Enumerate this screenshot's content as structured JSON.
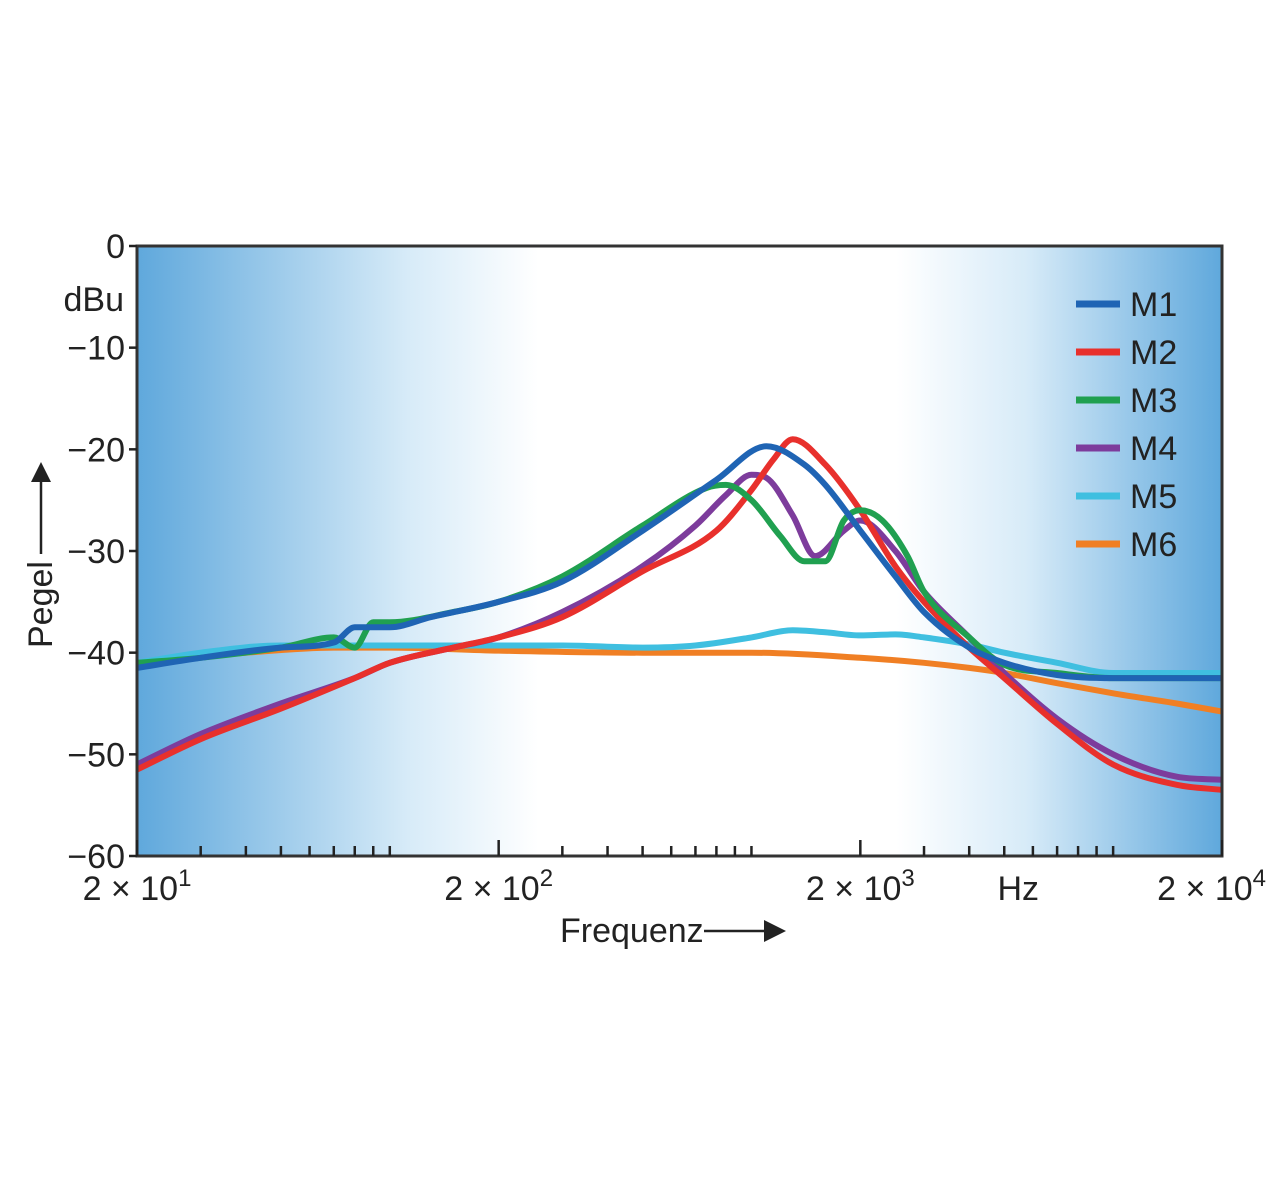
{
  "chart_data": {
    "type": "line",
    "title": "",
    "xlabel": "Frequenz",
    "ylabel": "Pegel",
    "yunit": "dBu",
    "xunit": "Hz",
    "x_scale": "log",
    "xlim": [
      20,
      20000
    ],
    "ylim": [
      -60,
      0
    ],
    "grid": false,
    "legend_position": "top-right",
    "y_ticks": [
      {
        "value": 0,
        "label": "0"
      },
      {
        "value": -10,
        "label": "−10"
      },
      {
        "value": -20,
        "label": "−20"
      },
      {
        "value": -30,
        "label": "−30"
      },
      {
        "value": -40,
        "label": "−40"
      },
      {
        "value": -50,
        "label": "−50"
      },
      {
        "value": -60,
        "label": "−60"
      }
    ],
    "x_major_ticks": [
      {
        "value": 20,
        "base": "2 × 10",
        "exp": "1"
      },
      {
        "value": 200,
        "base": "2 × 10",
        "exp": "2"
      },
      {
        "value": 2000,
        "base": "2 × 10",
        "exp": "3"
      },
      {
        "value": 20000,
        "base": "2 × 10",
        "exp": "4"
      }
    ],
    "x_unit_tick": {
      "value": 5000,
      "label": "Hz"
    },
    "x_minor_ticks": [
      30,
      40,
      50,
      60,
      70,
      80,
      90,
      100,
      300,
      400,
      500,
      600,
      700,
      800,
      900,
      1000,
      3000,
      4000,
      5000,
      6000,
      7000,
      8000,
      9000,
      10000
    ],
    "series": [
      {
        "name": "M1",
        "color": "#1f64b4",
        "x": [
          20,
          30,
          50,
          70,
          80,
          90,
          100,
          130,
          200,
          300,
          500,
          800,
          1100,
          1400,
          1600,
          2000,
          2500,
          3000,
          4000,
          5000,
          7000,
          10000,
          15000,
          20000
        ],
        "y": [
          -41.5,
          -40.5,
          -39.5,
          -39,
          -37.5,
          -37.5,
          -37.5,
          -36.5,
          -35,
          -33,
          -28,
          -23,
          -19.7,
          -21.5,
          -23.5,
          -28,
          -32.5,
          -36,
          -39.5,
          -41,
          -42.2,
          -42.5,
          -42.5,
          -42.5
        ]
      },
      {
        "name": "M2",
        "color": "#e8302c",
        "x": [
          20,
          30,
          50,
          80,
          100,
          150,
          200,
          300,
          500,
          800,
          1000,
          1150,
          1300,
          1600,
          2000,
          2500,
          3000,
          4000,
          5000,
          7000,
          10000,
          15000,
          20000
        ],
        "y": [
          -51.5,
          -48.5,
          -45.5,
          -42.5,
          -41,
          -39.5,
          -38.5,
          -36.5,
          -32,
          -28,
          -24,
          -21,
          -19,
          -21.5,
          -26,
          -31.5,
          -35,
          -39.5,
          -42.5,
          -47,
          -51,
          -53,
          -53.5
        ]
      },
      {
        "name": "M3",
        "color": "#20a050",
        "x": [
          20,
          30,
          50,
          70,
          80,
          90,
          100,
          150,
          200,
          300,
          500,
          750,
          850,
          1000,
          1200,
          1400,
          1600,
          1800,
          2000,
          2300,
          2700,
          3000,
          4000,
          5000,
          7000,
          10000,
          15000,
          20000
        ],
        "y": [
          -41,
          -40.5,
          -39.5,
          -38.5,
          -39.5,
          -37,
          -37,
          -36,
          -35,
          -32.5,
          -27.5,
          -23.8,
          -23.5,
          -25,
          -28.5,
          -31,
          -31,
          -27,
          -26,
          -27,
          -30.5,
          -34,
          -38.5,
          -41.2,
          -42,
          -42.5,
          -42.5,
          -42.5
        ]
      },
      {
        "name": "M4",
        "color": "#7d3c9c",
        "x": [
          20,
          30,
          50,
          80,
          100,
          150,
          200,
          300,
          500,
          700,
          850,
          1000,
          1100,
          1300,
          1500,
          1800,
          2000,
          2500,
          3000,
          4000,
          5000,
          7000,
          10000,
          15000,
          20000
        ],
        "y": [
          -51,
          -48,
          -45,
          -42.5,
          -41,
          -39.5,
          -38.5,
          -36,
          -31.5,
          -27.5,
          -24.5,
          -22.5,
          -22.8,
          -26.5,
          -30.5,
          -28,
          -27,
          -30,
          -34,
          -38.5,
          -42,
          -46.5,
          -50,
          -52.2,
          -52.5
        ]
      },
      {
        "name": "M5",
        "color": "#3fbfe0",
        "x": [
          20,
          30,
          50,
          100,
          200,
          300,
          500,
          700,
          1000,
          1300,
          1600,
          2000,
          2500,
          3000,
          4000,
          5000,
          7000,
          10000,
          20000
        ],
        "y": [
          -41,
          -40,
          -39.3,
          -39.3,
          -39.3,
          -39.3,
          -39.5,
          -39.3,
          -38.5,
          -37.8,
          -38,
          -38.3,
          -38.2,
          -38.5,
          -39.2,
          -40,
          -41,
          -42,
          -42
        ]
      },
      {
        "name": "M6",
        "color": "#f07f24",
        "x": [
          20,
          40,
          70,
          100,
          200,
          500,
          1000,
          2000,
          3000,
          4000,
          5000,
          7000,
          10000,
          15000,
          20000
        ],
        "y": [
          -41,
          -40,
          -39.5,
          -39.5,
          -39.8,
          -40,
          -40,
          -40.5,
          -41,
          -41.5,
          -42,
          -43,
          -44,
          -45,
          -45.8
        ]
      }
    ]
  }
}
